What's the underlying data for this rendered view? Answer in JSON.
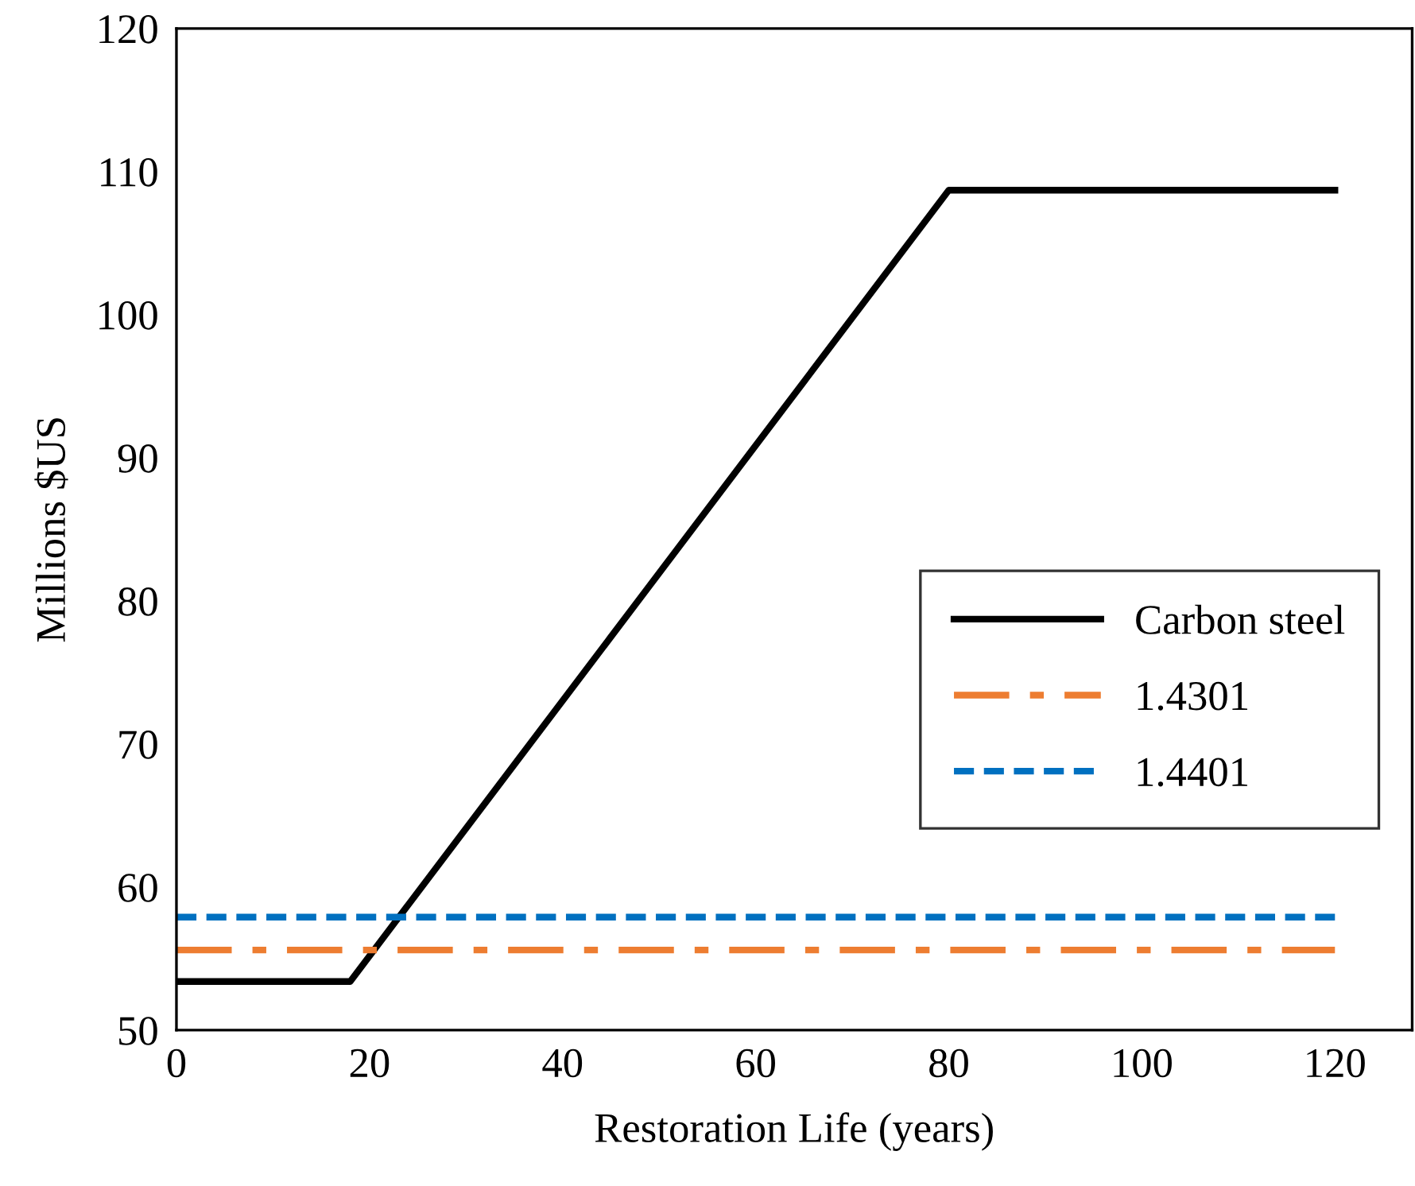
{
  "chart_data": {
    "type": "line",
    "xlabel": "Restoration Life (years)",
    "ylabel": "Millions $US",
    "xlim": [
      0,
      128
    ],
    "xticks": [
      0,
      20,
      40,
      60,
      80,
      100,
      120
    ],
    "ylim": [
      50,
      120
    ],
    "yticks": [
      50,
      60,
      70,
      80,
      90,
      100,
      110,
      120
    ],
    "grid": false,
    "legend": "right",
    "marker": "none",
    "series": [
      {
        "name": "Carbon steel",
        "color": "#000000",
        "line_style": "solid",
        "x": [
          0,
          18,
          80,
          120
        ],
        "values": [
          53.4,
          53.4,
          108.7,
          108.7
        ]
      },
      {
        "name": "1.4301",
        "color": "#ed7d31",
        "line_style": "dashdot",
        "x": [
          0,
          120
        ],
        "values": [
          55.6,
          55.6
        ]
      },
      {
        "name": "1.4401",
        "color": "#0070c0",
        "line_style": "dashed",
        "x": [
          0,
          120
        ],
        "values": [
          57.9,
          57.9
        ]
      }
    ]
  }
}
